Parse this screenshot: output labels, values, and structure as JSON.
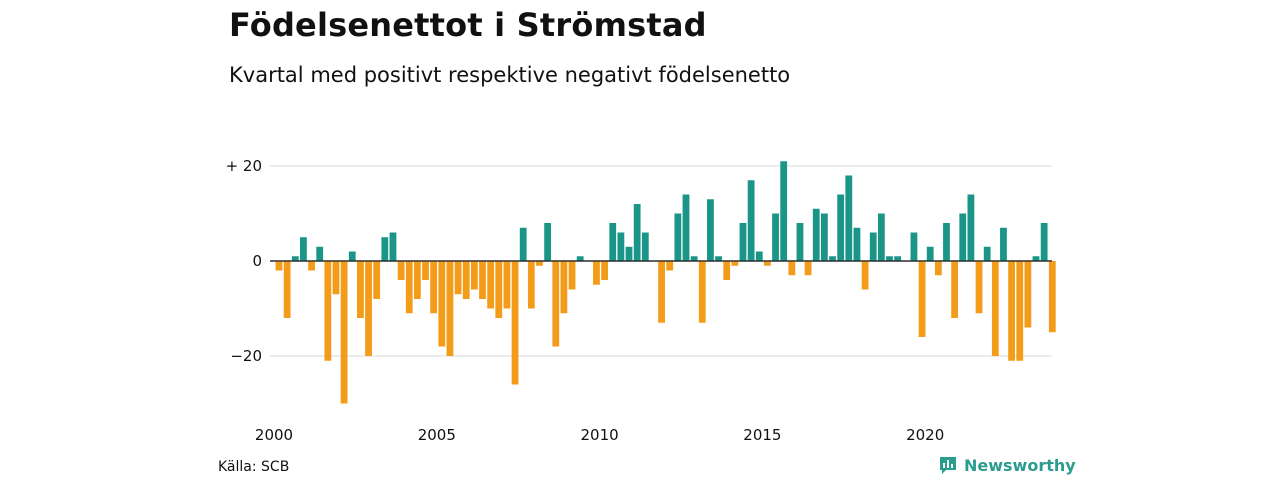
{
  "header": {
    "title": "Födelsenettot i Strömstad",
    "subtitle": "Kvartal med positivt respektive negativt födelsenetto"
  },
  "footer": {
    "source": "Källa: SCB",
    "brand": "Newsworthy"
  },
  "colors": {
    "positive": "#1a9588",
    "negative": "#f39c1a",
    "grid": "#d9d9d9",
    "brand": "#2a9d8f"
  },
  "chart_data": {
    "type": "bar",
    "start_year": 2000,
    "start_quarter": 1,
    "values": [
      -2,
      -12,
      1,
      5,
      -2,
      3,
      -21,
      -7,
      -30,
      2,
      -12,
      -20,
      -8,
      5,
      6,
      -4,
      -11,
      -8,
      -4,
      -11,
      -18,
      -20,
      -7,
      -8,
      -6,
      -8,
      -10,
      -12,
      -10,
      -26,
      7,
      -10,
      -1,
      8,
      -18,
      -11,
      -6,
      1,
      0,
      -5,
      -4,
      8,
      6,
      3,
      12,
      6,
      0,
      -13,
      -2,
      10,
      14,
      1,
      -13,
      13,
      1,
      -4,
      -1,
      8,
      17,
      2,
      -1,
      10,
      21,
      -3,
      8,
      -3,
      11,
      10,
      1,
      14,
      18,
      7,
      -6,
      6,
      10,
      1,
      1,
      0,
      6,
      -16,
      3,
      -3,
      8,
      -12,
      10,
      14,
      -11,
      3,
      -20,
      7,
      -21,
      -21,
      -14,
      1,
      8,
      -15
    ],
    "y_ticks": [
      {
        "value": 20,
        "label": "+ 20"
      },
      {
        "value": 0,
        "label": "0"
      },
      {
        "value": -20,
        "label": "−20"
      }
    ],
    "x_ticks": [
      "2000",
      "2005",
      "2010",
      "2015",
      "2020"
    ],
    "ylim": [
      -31,
      22
    ],
    "grid": true
  }
}
